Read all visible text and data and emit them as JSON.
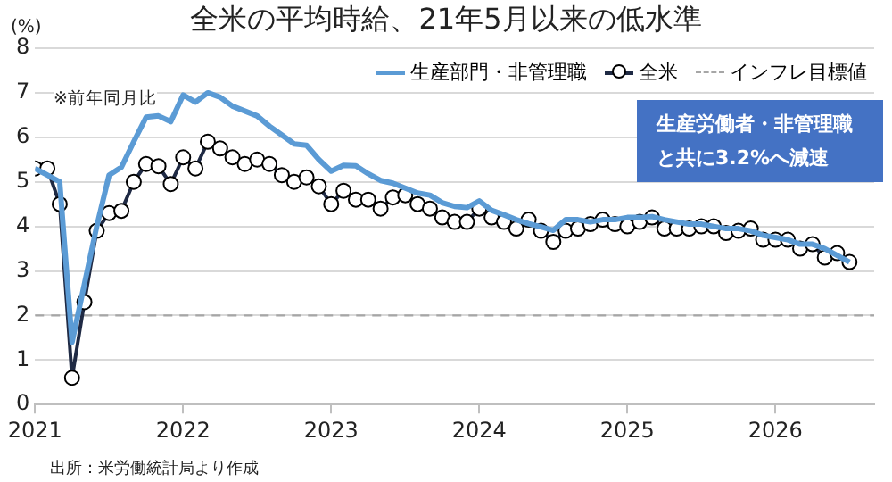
{
  "chart_data": {
    "type": "line",
    "title": "全米の平均時給、21年5月以来の低水準",
    "ylabel": "(%)",
    "x": [
      "2021-01",
      "2021-02",
      "2021-03",
      "2021-04",
      "2021-05",
      "2021-06",
      "2021-07",
      "2021-08",
      "2021-09",
      "2021-10",
      "2021-11",
      "2021-12",
      "2022-01",
      "2022-02",
      "2022-03",
      "2022-04",
      "2022-05",
      "2022-06",
      "2022-07",
      "2022-08",
      "2022-09",
      "2022-10",
      "2022-11",
      "2022-12",
      "2023-01",
      "2023-02",
      "2023-03",
      "2023-04",
      "2023-05",
      "2023-06",
      "2023-07",
      "2023-08",
      "2023-09",
      "2023-10",
      "2023-11",
      "2023-12",
      "2024-01",
      "2024-02",
      "2024-03",
      "2024-04",
      "2024-05",
      "2024-06",
      "2024-07",
      "2024-08",
      "2024-09",
      "2024-10",
      "2024-11",
      "2024-12",
      "2025-01",
      "2025-02",
      "2025-03",
      "2025-04",
      "2025-05",
      "2025-06",
      "2025-07",
      "2025-08",
      "2025-09",
      "2025-10",
      "2025-11",
      "2025-12",
      "2026-01",
      "2026-02",
      "2026-03",
      "2026-04",
      "2026-05",
      "2026-06",
      "2026-07"
    ],
    "series": [
      {
        "name": "生産部門・非管理職",
        "color": "#5b9bd5",
        "marker": "none",
        "values": [
          5.3,
          5.15,
          5.0,
          1.4,
          2.7,
          4.0,
          5.15,
          5.33,
          5.9,
          6.45,
          6.48,
          6.35,
          6.95,
          6.79,
          7.0,
          6.9,
          6.7,
          6.59,
          6.48,
          6.25,
          6.05,
          5.85,
          5.82,
          5.5,
          5.24,
          5.37,
          5.36,
          5.18,
          5.03,
          4.97,
          4.86,
          4.75,
          4.7,
          4.53,
          4.45,
          4.42,
          4.57,
          4.36,
          4.26,
          4.15,
          4.06,
          3.99,
          3.91,
          4.15,
          4.15,
          4.1,
          4.15,
          4.15,
          4.2,
          4.2,
          4.22,
          4.15,
          4.1,
          4.05,
          4.05,
          4.0,
          3.95,
          3.95,
          3.9,
          3.8,
          3.75,
          3.7,
          3.6,
          3.6,
          3.5,
          3.35,
          3.2
        ]
      },
      {
        "name": "全米",
        "color": "#1f2a44",
        "marker": "circle",
        "values": [
          5.3,
          5.3,
          4.5,
          0.6,
          2.3,
          3.9,
          4.3,
          4.35,
          5.0,
          5.4,
          5.35,
          4.95,
          5.55,
          5.3,
          5.9,
          5.75,
          5.55,
          5.4,
          5.5,
          5.4,
          5.15,
          5.0,
          5.1,
          4.9,
          4.5,
          4.8,
          4.6,
          4.6,
          4.4,
          4.65,
          4.7,
          4.5,
          4.4,
          4.2,
          4.1,
          4.1,
          4.4,
          4.2,
          4.1,
          3.95,
          4.15,
          3.9,
          3.65,
          3.9,
          3.95,
          4.05,
          4.15,
          4.05,
          4.0,
          4.1,
          4.2,
          3.95,
          3.95,
          3.95,
          4.0,
          4.0,
          3.85,
          3.9,
          3.95,
          3.7,
          3.7,
          3.7,
          3.5,
          3.6,
          3.3,
          3.4,
          3.2
        ]
      }
    ],
    "ref_lines": [
      {
        "axis": "y",
        "value": 2,
        "label": "インフレ目標値",
        "color": "#a6a6a6",
        "line_style": "dashed"
      }
    ],
    "xlim": [
      "2021-01",
      "2026-09"
    ],
    "xticks": [
      "2021",
      "2022",
      "2023",
      "2024",
      "2025",
      "2026"
    ],
    "ylim": [
      0,
      8
    ],
    "yticks": [
      0,
      1,
      2,
      3,
      4,
      5,
      6,
      7,
      8
    ],
    "grid": "y",
    "legend": "top right",
    "annotations": [
      "※前年同月比",
      "生産労働者・非管理職と共に3.2%へ減速",
      "出所：米労働統計局より作成"
    ]
  }
}
